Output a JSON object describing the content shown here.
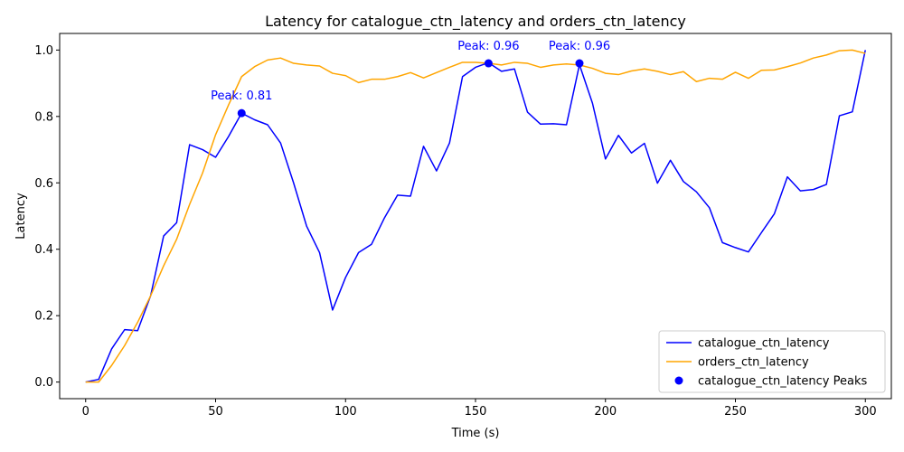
{
  "chart_data": {
    "type": "line",
    "title": "Latency for catalogue_ctn_latency and orders_ctn_latency",
    "xlabel": "Time (s)",
    "ylabel": "Latency",
    "xlim": [
      -10,
      310
    ],
    "ylim": [
      -0.05,
      1.05
    ],
    "xticks": [
      0,
      50,
      100,
      150,
      200,
      250,
      300
    ],
    "yticks": [
      0.0,
      0.2,
      0.4,
      0.6,
      0.8,
      1.0
    ],
    "xtick_labels": [
      "0",
      "50",
      "100",
      "150",
      "200",
      "250",
      "300"
    ],
    "ytick_labels": [
      "0.0",
      "0.2",
      "0.4",
      "0.6",
      "0.8",
      "1.0"
    ],
    "grid": false,
    "legend_position": "bottom-right",
    "x": [
      0,
      5,
      10,
      15,
      20,
      25,
      30,
      35,
      40,
      45,
      50,
      55,
      60,
      65,
      70,
      75,
      80,
      85,
      90,
      95,
      100,
      105,
      110,
      115,
      120,
      125,
      130,
      135,
      140,
      145,
      150,
      155,
      160,
      165,
      170,
      175,
      180,
      185,
      190,
      195,
      200,
      205,
      210,
      215,
      220,
      225,
      230,
      235,
      240,
      245,
      250,
      255,
      260,
      265,
      270,
      275,
      280,
      285,
      290,
      295,
      300
    ],
    "series": [
      {
        "name": "catalogue_ctn_latency",
        "color": "#0000ff",
        "values": [
          0.0,
          0.008,
          0.1,
          0.158,
          0.155,
          0.26,
          0.44,
          0.48,
          0.715,
          0.7,
          0.677,
          0.74,
          0.81,
          0.79,
          0.775,
          0.72,
          0.6,
          0.47,
          0.39,
          0.217,
          0.315,
          0.39,
          0.415,
          0.495,
          0.563,
          0.56,
          0.71,
          0.636,
          0.72,
          0.92,
          0.948,
          0.962,
          0.936,
          0.943,
          0.813,
          0.777,
          0.778,
          0.775,
          0.956,
          0.84,
          0.672,
          0.743,
          0.69,
          0.719,
          0.599,
          0.668,
          0.604,
          0.573,
          0.525,
          0.42,
          0.405,
          0.392,
          0.45,
          0.507,
          0.618,
          0.576,
          0.58,
          0.595,
          0.802,
          0.814,
          1.0
        ]
      },
      {
        "name": "orders_ctn_latency",
        "color": "#ffa500",
        "values": [
          0.0,
          0.0,
          0.05,
          0.11,
          0.18,
          0.26,
          0.35,
          0.43,
          0.535,
          0.63,
          0.745,
          0.835,
          0.92,
          0.95,
          0.97,
          0.976,
          0.96,
          0.955,
          0.952,
          0.93,
          0.923,
          0.902,
          0.912,
          0.912,
          0.92,
          0.932,
          0.916,
          0.932,
          0.948,
          0.963,
          0.963,
          0.96,
          0.955,
          0.963,
          0.96,
          0.948,
          0.955,
          0.958,
          0.955,
          0.945,
          0.93,
          0.926,
          0.937,
          0.943,
          0.936,
          0.926,
          0.935,
          0.905,
          0.915,
          0.912,
          0.933,
          0.915,
          0.939,
          0.94,
          0.95,
          0.961,
          0.976,
          0.985,
          0.998,
          1.0,
          0.99
        ]
      }
    ],
    "peaks": {
      "name": "catalogue_ctn_latency Peaks",
      "color": "#0000ff",
      "points": [
        {
          "x": 60,
          "y": 0.81,
          "label": "Peak: 0.81"
        },
        {
          "x": 155,
          "y": 0.96,
          "label": "Peak: 0.96"
        },
        {
          "x": 190,
          "y": 0.96,
          "label": "Peak: 0.96"
        }
      ]
    }
  }
}
